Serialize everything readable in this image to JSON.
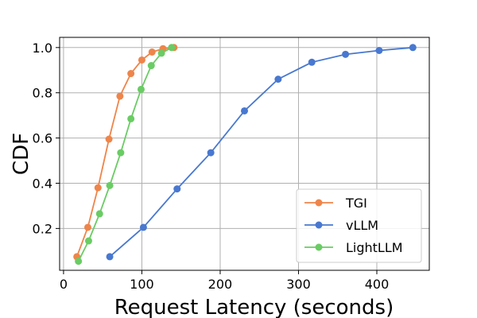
{
  "chart_data": {
    "type": "line",
    "xlabel": "Request Latency (seconds)",
    "ylabel": "CDF",
    "xlim": [
      -5,
      467
    ],
    "ylim": [
      0.015,
      1.045
    ],
    "x_ticks": [
      0,
      100,
      200,
      300,
      400
    ],
    "y_ticks": [
      0.2,
      0.4,
      0.6,
      0.8,
      1.0
    ],
    "x_tick_labels": [
      "0",
      "100",
      "200",
      "300",
      "400"
    ],
    "y_tick_labels": [
      "0.2",
      "0.4",
      "0.6",
      "0.8",
      "1.0"
    ],
    "grid": true,
    "legend_position": "lower-right",
    "series": [
      {
        "name": "TGI",
        "color": "#ee854a",
        "x": [
          17,
          31,
          44,
          58,
          72,
          86,
          100,
          113,
          127,
          141
        ],
        "y": [
          0.075,
          0.205,
          0.38,
          0.595,
          0.785,
          0.885,
          0.945,
          0.98,
          0.995,
          1.0
        ]
      },
      {
        "name": "vLLM",
        "color": "#4878d0",
        "x": [
          59,
          102,
          145,
          188,
          231,
          274,
          317,
          360,
          403,
          446
        ],
        "y": [
          0.075,
          0.205,
          0.375,
          0.535,
          0.72,
          0.86,
          0.935,
          0.97,
          0.987,
          1.0
        ]
      },
      {
        "name": "LightLLM",
        "color": "#6acc64",
        "x": [
          19,
          32,
          46,
          59,
          73,
          86,
          99,
          112,
          125,
          138
        ],
        "y": [
          0.055,
          0.145,
          0.265,
          0.39,
          0.535,
          0.685,
          0.815,
          0.92,
          0.975,
          1.0
        ]
      }
    ]
  }
}
